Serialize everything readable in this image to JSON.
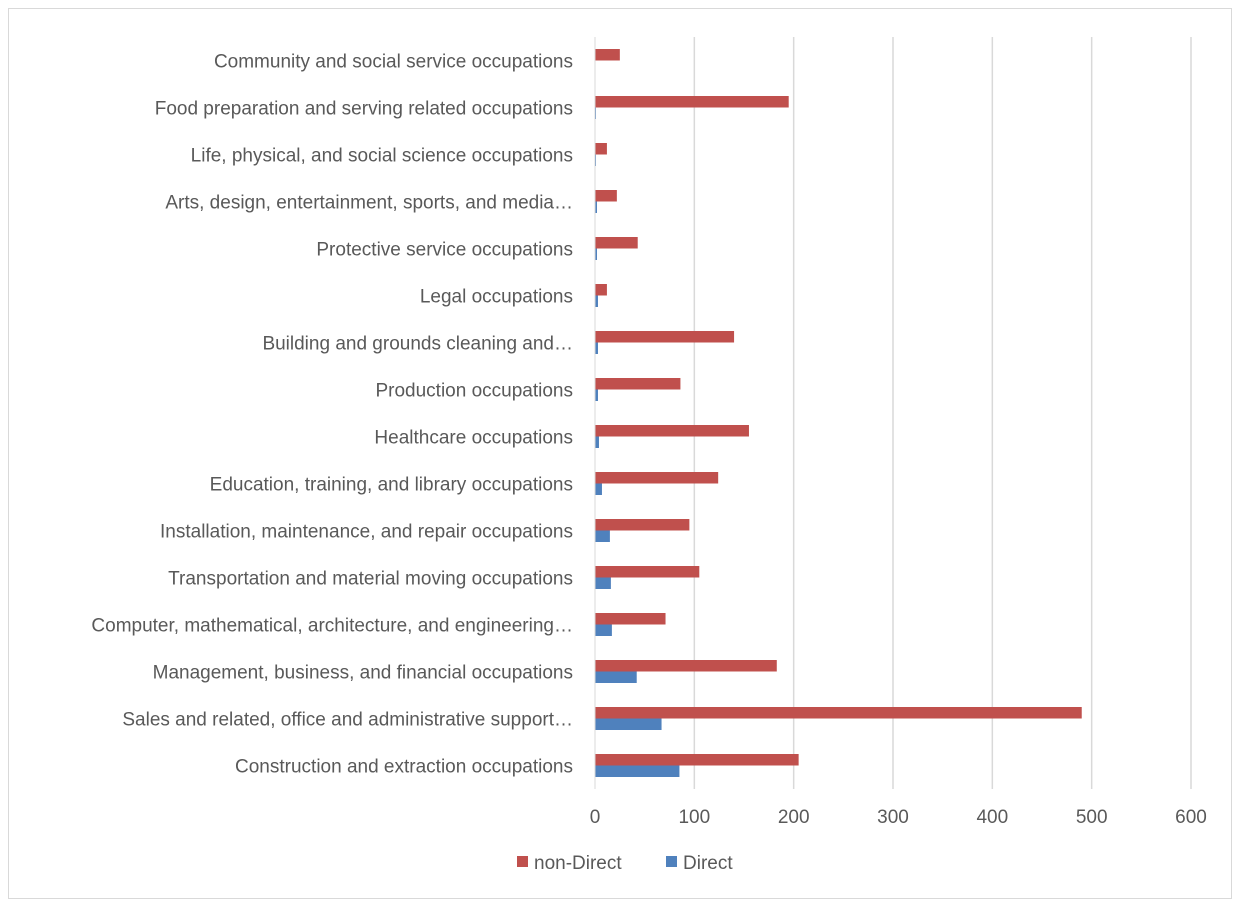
{
  "chart_data": {
    "type": "bar",
    "orientation": "horizontal",
    "categories": [
      "Construction and extraction occupations",
      "Sales and related, office and administrative support…",
      "Management, business, and financial occupations",
      "Computer, mathematical, architecture, and engineering…",
      "Transportation and material moving occupations",
      "Installation, maintenance, and repair occupations",
      "Education, training, and library occupations",
      "Healthcare occupations",
      "Production occupations",
      "Building and grounds cleaning and…",
      "Legal occupations",
      "Protective service occupations",
      "Arts, design, entertainment, sports, and media…",
      "Life, physical, and social science occupations",
      "Food preparation and serving related occupations",
      "Community and social service occupations"
    ],
    "series": [
      {
        "name": "non-Direct",
        "color": "#c0504d",
        "values": [
          205,
          490,
          183,
          71,
          105,
          95,
          124,
          155,
          86,
          140,
          12,
          43,
          22,
          12,
          195,
          25
        ]
      },
      {
        "name": "Direct",
        "color": "#4f81bd",
        "values": [
          85,
          67,
          42,
          17,
          16,
          15,
          7,
          4,
          3,
          3,
          3,
          2,
          2,
          1,
          1,
          0
        ]
      }
    ],
    "xlim": [
      0,
      600
    ],
    "xticks": [
      "0",
      "100",
      "200",
      "300",
      "400",
      "500",
      "600"
    ],
    "grid": true,
    "legend_position": "bottom",
    "title": "",
    "xlabel": "",
    "ylabel": ""
  }
}
